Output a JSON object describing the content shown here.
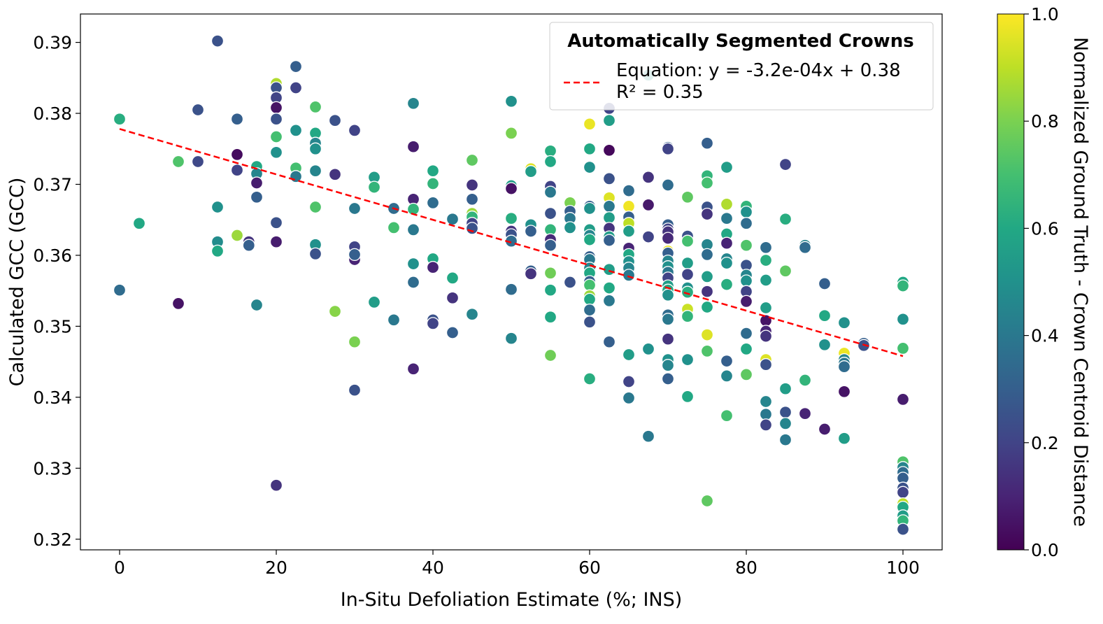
{
  "chart_data": {
    "type": "scatter",
    "xlabel": "In-Situ Defoliation Estimate (%; INS)",
    "ylabel": "Calculated GCC (GCC)",
    "xlim": [
      -5,
      105
    ],
    "ylim": [
      0.3185,
      0.394
    ],
    "x_ticks": [
      "0",
      "20",
      "40",
      "60",
      "80",
      "100"
    ],
    "y_ticks": [
      "0.32",
      "0.33",
      "0.34",
      "0.35",
      "0.36",
      "0.37",
      "0.38",
      "0.39"
    ],
    "grid": false,
    "legend": {
      "title": "Automatically Segmented Crowns",
      "position": "top-right",
      "entries": [
        "Equation: y = -3.2e-04x + 0.38",
        "R² = 0.35"
      ]
    },
    "regression": {
      "slope": -0.00032,
      "intercept": 0.3778,
      "x_range": [
        0,
        100
      ],
      "color": "#ff0000",
      "style": "dashed"
    },
    "colorbar": {
      "label": "Normalized Ground Truth - Crown Centroid Distance",
      "colormap": "viridis",
      "range": [
        0.0,
        1.0
      ],
      "ticks": [
        "0.0",
        "0.2",
        "0.4",
        "0.6",
        "0.8",
        "1.0"
      ]
    },
    "points": [
      [
        0,
        0.3792,
        0.62
      ],
      [
        0,
        0.3551,
        0.35
      ],
      [
        2.5,
        0.3645,
        0.6
      ],
      [
        7.5,
        0.3732,
        0.72
      ],
      [
        7.5,
        0.3532,
        0.05
      ],
      [
        10,
        0.3805,
        0.25
      ],
      [
        10,
        0.3732,
        0.22
      ],
      [
        12.5,
        0.3902,
        0.25
      ],
      [
        12.5,
        0.3668,
        0.5
      ],
      [
        12.5,
        0.3619,
        0.48
      ],
      [
        12.5,
        0.3606,
        0.6
      ],
      [
        15,
        0.3792,
        0.3
      ],
      [
        15,
        0.3742,
        0.03
      ],
      [
        15,
        0.372,
        0.2
      ],
      [
        15,
        0.3628,
        0.85
      ],
      [
        16.5,
        0.3619,
        0.15
      ],
      [
        16.5,
        0.3614,
        0.3
      ],
      [
        17.5,
        0.3725,
        0.6
      ],
      [
        17.5,
        0.3715,
        0.45
      ],
      [
        17.5,
        0.3702,
        0.08
      ],
      [
        17.5,
        0.3682,
        0.3
      ],
      [
        17.5,
        0.353,
        0.45
      ],
      [
        20,
        0.3842,
        0.88
      ],
      [
        20,
        0.3836,
        0.25
      ],
      [
        20,
        0.3822,
        0.2
      ],
      [
        20,
        0.3808,
        0.05
      ],
      [
        20,
        0.3792,
        0.25
      ],
      [
        20,
        0.3767,
        0.7
      ],
      [
        20,
        0.3745,
        0.5
      ],
      [
        20,
        0.3646,
        0.25
      ],
      [
        20,
        0.3619,
        0.08
      ],
      [
        20,
        0.3276,
        0.15
      ],
      [
        22.5,
        0.3866,
        0.3
      ],
      [
        22.5,
        0.3836,
        0.2
      ],
      [
        22.5,
        0.3776,
        0.5
      ],
      [
        22.5,
        0.3723,
        0.7
      ],
      [
        22.5,
        0.3711,
        0.4
      ],
      [
        25,
        0.3809,
        0.72
      ],
      [
        25,
        0.3772,
        0.6
      ],
      [
        25,
        0.3758,
        0.45
      ],
      [
        25,
        0.375,
        0.5
      ],
      [
        25,
        0.3719,
        0.45
      ],
      [
        25,
        0.3668,
        0.72
      ],
      [
        25,
        0.3615,
        0.5
      ],
      [
        25,
        0.3602,
        0.25
      ],
      [
        27.5,
        0.379,
        0.25
      ],
      [
        27.5,
        0.3714,
        0.15
      ],
      [
        27.5,
        0.3521,
        0.82
      ],
      [
        30,
        0.3776,
        0.2
      ],
      [
        30,
        0.3666,
        0.4
      ],
      [
        30,
        0.3612,
        0.2
      ],
      [
        30,
        0.3594,
        0.1
      ],
      [
        30,
        0.3601,
        0.3
      ],
      [
        30,
        0.3478,
        0.8
      ],
      [
        30,
        0.341,
        0.25
      ],
      [
        32.5,
        0.371,
        0.55
      ],
      [
        32.5,
        0.3696,
        0.65
      ],
      [
        32.5,
        0.3534,
        0.55
      ],
      [
        35,
        0.3666,
        0.35
      ],
      [
        35,
        0.3639,
        0.7
      ],
      [
        35,
        0.3509,
        0.4
      ],
      [
        37.5,
        0.3814,
        0.45
      ],
      [
        37.5,
        0.3753,
        0.08
      ],
      [
        37.5,
        0.3679,
        0.1
      ],
      [
        37.5,
        0.3665,
        0.65
      ],
      [
        37.5,
        0.3636,
        0.4
      ],
      [
        37.5,
        0.3588,
        0.5
      ],
      [
        37.5,
        0.3562,
        0.35
      ],
      [
        37.5,
        0.344,
        0.1
      ],
      [
        40,
        0.3719,
        0.6
      ],
      [
        40,
        0.3701,
        0.65
      ],
      [
        40,
        0.3674,
        0.35
      ],
      [
        40,
        0.3595,
        0.6
      ],
      [
        40,
        0.3583,
        0.1
      ],
      [
        40,
        0.3509,
        0.25
      ],
      [
        40,
        0.3504,
        0.2
      ],
      [
        42.5,
        0.3651,
        0.4
      ],
      [
        42.5,
        0.3568,
        0.6
      ],
      [
        42.5,
        0.354,
        0.15
      ],
      [
        42.5,
        0.3491,
        0.3
      ],
      [
        45,
        0.3734,
        0.75
      ],
      [
        45,
        0.3699,
        0.15
      ],
      [
        45,
        0.3679,
        0.3
      ],
      [
        45,
        0.3659,
        0.85
      ],
      [
        45,
        0.3654,
        0.65
      ],
      [
        45,
        0.3645,
        0.2
      ],
      [
        45,
        0.3638,
        0.25
      ],
      [
        45,
        0.3517,
        0.45
      ],
      [
        50,
        0.3817,
        0.5
      ],
      [
        50,
        0.3772,
        0.8
      ],
      [
        50,
        0.3698,
        0.55
      ],
      [
        50,
        0.3694,
        0.05
      ],
      [
        50,
        0.3652,
        0.62
      ],
      [
        50,
        0.3634,
        0.15
      ],
      [
        50,
        0.3629,
        0.25
      ],
      [
        50,
        0.362,
        0.35
      ],
      [
        50,
        0.3552,
        0.35
      ],
      [
        50,
        0.3483,
        0.45
      ],
      [
        52.5,
        0.3722,
        0.95
      ],
      [
        52.5,
        0.3718,
        0.55
      ],
      [
        52.5,
        0.3643,
        0.5
      ],
      [
        52.5,
        0.3634,
        0.3
      ],
      [
        52.5,
        0.3578,
        0.3
      ],
      [
        52.5,
        0.3574,
        0.15
      ],
      [
        55,
        0.3747,
        0.62
      ],
      [
        55,
        0.3732,
        0.6
      ],
      [
        55,
        0.3697,
        0.2
      ],
      [
        55,
        0.3689,
        0.4
      ],
      [
        55,
        0.3659,
        0.25
      ],
      [
        55,
        0.3636,
        0.65
      ],
      [
        55,
        0.3622,
        0.12
      ],
      [
        55,
        0.3614,
        0.3
      ],
      [
        55,
        0.3575,
        0.78
      ],
      [
        55,
        0.3551,
        0.6
      ],
      [
        55,
        0.3513,
        0.6
      ],
      [
        55,
        0.3459,
        0.78
      ],
      [
        57.5,
        0.3674,
        0.8
      ],
      [
        57.5,
        0.3662,
        0.3
      ],
      [
        57.5,
        0.3652,
        0.4
      ],
      [
        57.5,
        0.3639,
        0.5
      ],
      [
        57.5,
        0.3562,
        0.25
      ],
      [
        60,
        0.3785,
        0.97
      ],
      [
        60,
        0.375,
        0.6
      ],
      [
        60,
        0.3724,
        0.5
      ],
      [
        60,
        0.3669,
        0.3
      ],
      [
        60,
        0.3666,
        0.5
      ],
      [
        60,
        0.3636,
        0.55
      ],
      [
        60,
        0.3628,
        0.45
      ],
      [
        60,
        0.3622,
        0.6
      ],
      [
        60,
        0.3598,
        0.3
      ],
      [
        60,
        0.3594,
        0.4
      ],
      [
        60,
        0.3582,
        0.45
      ],
      [
        60,
        0.3575,
        0.6
      ],
      [
        60,
        0.3563,
        0.3
      ],
      [
        60,
        0.3558,
        0.7
      ],
      [
        60,
        0.3543,
        0.85
      ],
      [
        60,
        0.3538,
        0.6
      ],
      [
        60,
        0.3523,
        0.35
      ],
      [
        60,
        0.3506,
        0.25
      ],
      [
        60,
        0.3426,
        0.62
      ],
      [
        62.5,
        0.3807,
        0.2
      ],
      [
        62.5,
        0.379,
        0.55
      ],
      [
        62.5,
        0.3748,
        0.02
      ],
      [
        62.5,
        0.3708,
        0.25
      ],
      [
        62.5,
        0.3681,
        0.95
      ],
      [
        62.5,
        0.3669,
        0.4
      ],
      [
        62.5,
        0.3653,
        0.55
      ],
      [
        62.5,
        0.3638,
        0.15
      ],
      [
        62.5,
        0.3626,
        0.55
      ],
      [
        62.5,
        0.3621,
        0.3
      ],
      [
        62.5,
        0.358,
        0.55
      ],
      [
        62.5,
        0.3554,
        0.6
      ],
      [
        62.5,
        0.3536,
        0.4
      ],
      [
        62.5,
        0.3478,
        0.3
      ],
      [
        65,
        0.3691,
        0.35
      ],
      [
        65,
        0.3669,
        0.98
      ],
      [
        65,
        0.3654,
        0.3
      ],
      [
        65,
        0.3645,
        0.9
      ],
      [
        65,
        0.3634,
        0.55
      ],
      [
        65,
        0.361,
        0.1
      ],
      [
        65,
        0.3601,
        0.6
      ],
      [
        65,
        0.3591,
        0.5
      ],
      [
        65,
        0.3582,
        0.45
      ],
      [
        65,
        0.3572,
        0.4
      ],
      [
        65,
        0.346,
        0.55
      ],
      [
        65,
        0.3422,
        0.2
      ],
      [
        65,
        0.3399,
        0.4
      ],
      [
        67.5,
        0.3854,
        0.5
      ],
      [
        67.5,
        0.371,
        0.15
      ],
      [
        67.5,
        0.3671,
        0.07
      ],
      [
        67.5,
        0.3626,
        0.2
      ],
      [
        67.5,
        0.3468,
        0.5
      ],
      [
        67.5,
        0.3345,
        0.4
      ],
      [
        70,
        0.3752,
        0.3
      ],
      [
        70,
        0.375,
        0.2
      ],
      [
        70,
        0.3699,
        0.35
      ],
      [
        70,
        0.3643,
        0.3
      ],
      [
        70,
        0.3637,
        0.2
      ],
      [
        70,
        0.3633,
        0.15
      ],
      [
        70,
        0.3624,
        0.12
      ],
      [
        70,
        0.3606,
        0.97
      ],
      [
        70,
        0.3603,
        0.3
      ],
      [
        70,
        0.3592,
        0.45
      ],
      [
        70,
        0.3584,
        0.5
      ],
      [
        70,
        0.3576,
        0.4
      ],
      [
        70,
        0.3568,
        0.2
      ],
      [
        70,
        0.3557,
        0.55
      ],
      [
        70,
        0.3551,
        0.6
      ],
      [
        70,
        0.3544,
        0.5
      ],
      [
        70,
        0.3516,
        0.35
      ],
      [
        70,
        0.351,
        0.4
      ],
      [
        70,
        0.3482,
        0.15
      ],
      [
        70,
        0.3453,
        0.5
      ],
      [
        70,
        0.3445,
        0.45
      ],
      [
        70,
        0.3426,
        0.3
      ],
      [
        72.5,
        0.3682,
        0.75
      ],
      [
        72.5,
        0.3627,
        0.25
      ],
      [
        72.5,
        0.362,
        0.7
      ],
      [
        72.5,
        0.3589,
        0.55
      ],
      [
        72.5,
        0.3573,
        0.2
      ],
      [
        72.5,
        0.3554,
        0.5
      ],
      [
        72.5,
        0.3548,
        0.62
      ],
      [
        72.5,
        0.3524,
        0.92
      ],
      [
        72.5,
        0.3514,
        0.65
      ],
      [
        72.5,
        0.3453,
        0.5
      ],
      [
        72.5,
        0.3401,
        0.6
      ],
      [
        75,
        0.3758,
        0.3
      ],
      [
        75,
        0.3712,
        0.65
      ],
      [
        75,
        0.3702,
        0.7
      ],
      [
        75,
        0.3668,
        0.25
      ],
      [
        75,
        0.3658,
        0.15
      ],
      [
        75,
        0.3615,
        0.45
      ],
      [
        75,
        0.3601,
        0.35
      ],
      [
        75,
        0.3571,
        0.6
      ],
      [
        75,
        0.357,
        0.55
      ],
      [
        75,
        0.3549,
        0.15
      ],
      [
        75,
        0.3527,
        0.6
      ],
      [
        75,
        0.3488,
        0.95
      ],
      [
        75,
        0.3465,
        0.72
      ],
      [
        75,
        0.3254,
        0.75
      ],
      [
        77.5,
        0.3724,
        0.55
      ],
      [
        77.5,
        0.3672,
        0.88
      ],
      [
        77.5,
        0.3652,
        0.4
      ],
      [
        77.5,
        0.363,
        0.6
      ],
      [
        77.5,
        0.3617,
        0.1
      ],
      [
        77.5,
        0.3595,
        0.45
      ],
      [
        77.5,
        0.3589,
        0.5
      ],
      [
        77.5,
        0.3559,
        0.62
      ],
      [
        77.5,
        0.3451,
        0.3
      ],
      [
        77.5,
        0.343,
        0.45
      ],
      [
        77.5,
        0.3374,
        0.7
      ],
      [
        80,
        0.3669,
        0.65
      ],
      [
        80,
        0.3661,
        0.5
      ],
      [
        80,
        0.3645,
        0.35
      ],
      [
        80,
        0.3614,
        0.72
      ],
      [
        80,
        0.3586,
        0.25
      ],
      [
        80,
        0.3572,
        0.45
      ],
      [
        80,
        0.3564,
        0.5
      ],
      [
        80,
        0.3549,
        0.2
      ],
      [
        80,
        0.3535,
        0.08
      ],
      [
        80,
        0.349,
        0.35
      ],
      [
        80,
        0.3468,
        0.6
      ],
      [
        80,
        0.3432,
        0.75
      ],
      [
        82.5,
        0.3611,
        0.35
      ],
      [
        82.5,
        0.3593,
        0.62
      ],
      [
        82.5,
        0.3565,
        0.55
      ],
      [
        82.5,
        0.3526,
        0.55
      ],
      [
        82.5,
        0.3508,
        0.05
      ],
      [
        82.5,
        0.3493,
        0.1
      ],
      [
        82.5,
        0.3486,
        0.15
      ],
      [
        82.5,
        0.3453,
        0.95
      ],
      [
        82.5,
        0.3446,
        0.25
      ],
      [
        82.5,
        0.3394,
        0.45
      ],
      [
        82.5,
        0.3376,
        0.4
      ],
      [
        82.5,
        0.3361,
        0.2
      ],
      [
        85,
        0.3728,
        0.2
      ],
      [
        85,
        0.3651,
        0.62
      ],
      [
        85,
        0.3578,
        0.75
      ],
      [
        85,
        0.3412,
        0.55
      ],
      [
        85,
        0.3379,
        0.25
      ],
      [
        85,
        0.3363,
        0.45
      ],
      [
        85,
        0.334,
        0.4
      ],
      [
        87.5,
        0.3614,
        0.45
      ],
      [
        87.5,
        0.3611,
        0.35
      ],
      [
        87.5,
        0.3424,
        0.65
      ],
      [
        87.5,
        0.3378,
        0.9
      ],
      [
        87.5,
        0.3377,
        0.1
      ],
      [
        90,
        0.356,
        0.3
      ],
      [
        90,
        0.3515,
        0.6
      ],
      [
        90,
        0.3474,
        0.5
      ],
      [
        90,
        0.3355,
        0.08
      ],
      [
        92.5,
        0.3505,
        0.5
      ],
      [
        92.5,
        0.3462,
        0.97
      ],
      [
        92.5,
        0.3453,
        0.45
      ],
      [
        92.5,
        0.3448,
        0.4
      ],
      [
        92.5,
        0.3443,
        0.35
      ],
      [
        92.5,
        0.3408,
        0.05
      ],
      [
        92.5,
        0.3342,
        0.55
      ],
      [
        95,
        0.3476,
        0.3
      ],
      [
        95,
        0.3473,
        0.25
      ],
      [
        100,
        0.3562,
        0.6
      ],
      [
        100,
        0.3557,
        0.65
      ],
      [
        100,
        0.351,
        0.5
      ],
      [
        100,
        0.3469,
        0.7
      ],
      [
        100,
        0.3397,
        0.08
      ],
      [
        100,
        0.3309,
        0.72
      ],
      [
        100,
        0.3301,
        0.45
      ],
      [
        100,
        0.3294,
        0.35
      ],
      [
        100,
        0.3286,
        0.3
      ],
      [
        100,
        0.3272,
        0.25
      ],
      [
        100,
        0.3266,
        0.2
      ],
      [
        100,
        0.325,
        0.9
      ],
      [
        100,
        0.3245,
        0.6
      ],
      [
        100,
        0.3233,
        0.55
      ],
      [
        100,
        0.3226,
        0.65
      ],
      [
        100,
        0.3214,
        0.25
      ]
    ]
  }
}
